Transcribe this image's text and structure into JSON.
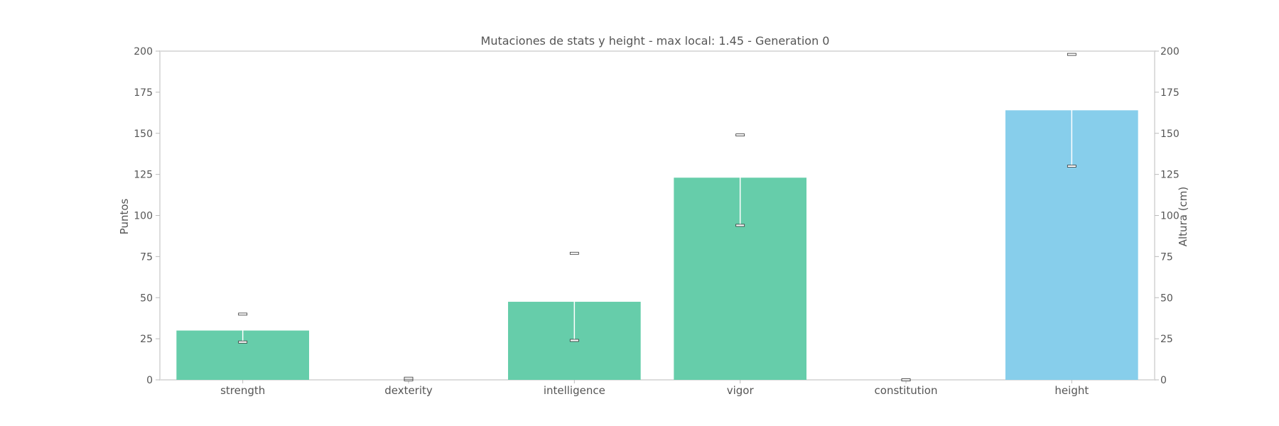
{
  "chart_data": {
    "type": "bar",
    "title": "Mutaciones de stats y height - max local: 1.45 - Generation 0",
    "xlabel": "",
    "ylabel": "Puntos",
    "ylabel_right": "Altura (cm)",
    "ylim": [
      0,
      200
    ],
    "ylim_right": [
      0,
      200
    ],
    "yticks": [
      0,
      25,
      50,
      75,
      100,
      125,
      150,
      175,
      200
    ],
    "yticks_right": [
      0,
      25,
      50,
      75,
      100,
      125,
      150,
      175,
      200
    ],
    "grid": false,
    "categories": [
      "strength",
      "dexterity",
      "intelligence",
      "vigor",
      "constitution",
      "height"
    ],
    "series": [
      {
        "axis": "left",
        "color": "#66cdaa",
        "values": [
          30,
          0,
          47.5,
          123,
          0,
          null
        ],
        "err_low": [
          23,
          0,
          24,
          94,
          0,
          null
        ],
        "err_high": [
          40,
          1,
          77,
          149,
          0,
          null
        ]
      },
      {
        "axis": "right",
        "color": "#87ceeb",
        "values": [
          null,
          null,
          null,
          null,
          null,
          164
        ],
        "err_low": [
          null,
          null,
          null,
          null,
          null,
          130
        ],
        "err_high": [
          null,
          null,
          null,
          null,
          null,
          198
        ]
      }
    ],
    "colors": {
      "axis": "#dddddd",
      "text": "#555555",
      "errorbar": "#ffffff",
      "cap": "#333333"
    }
  }
}
